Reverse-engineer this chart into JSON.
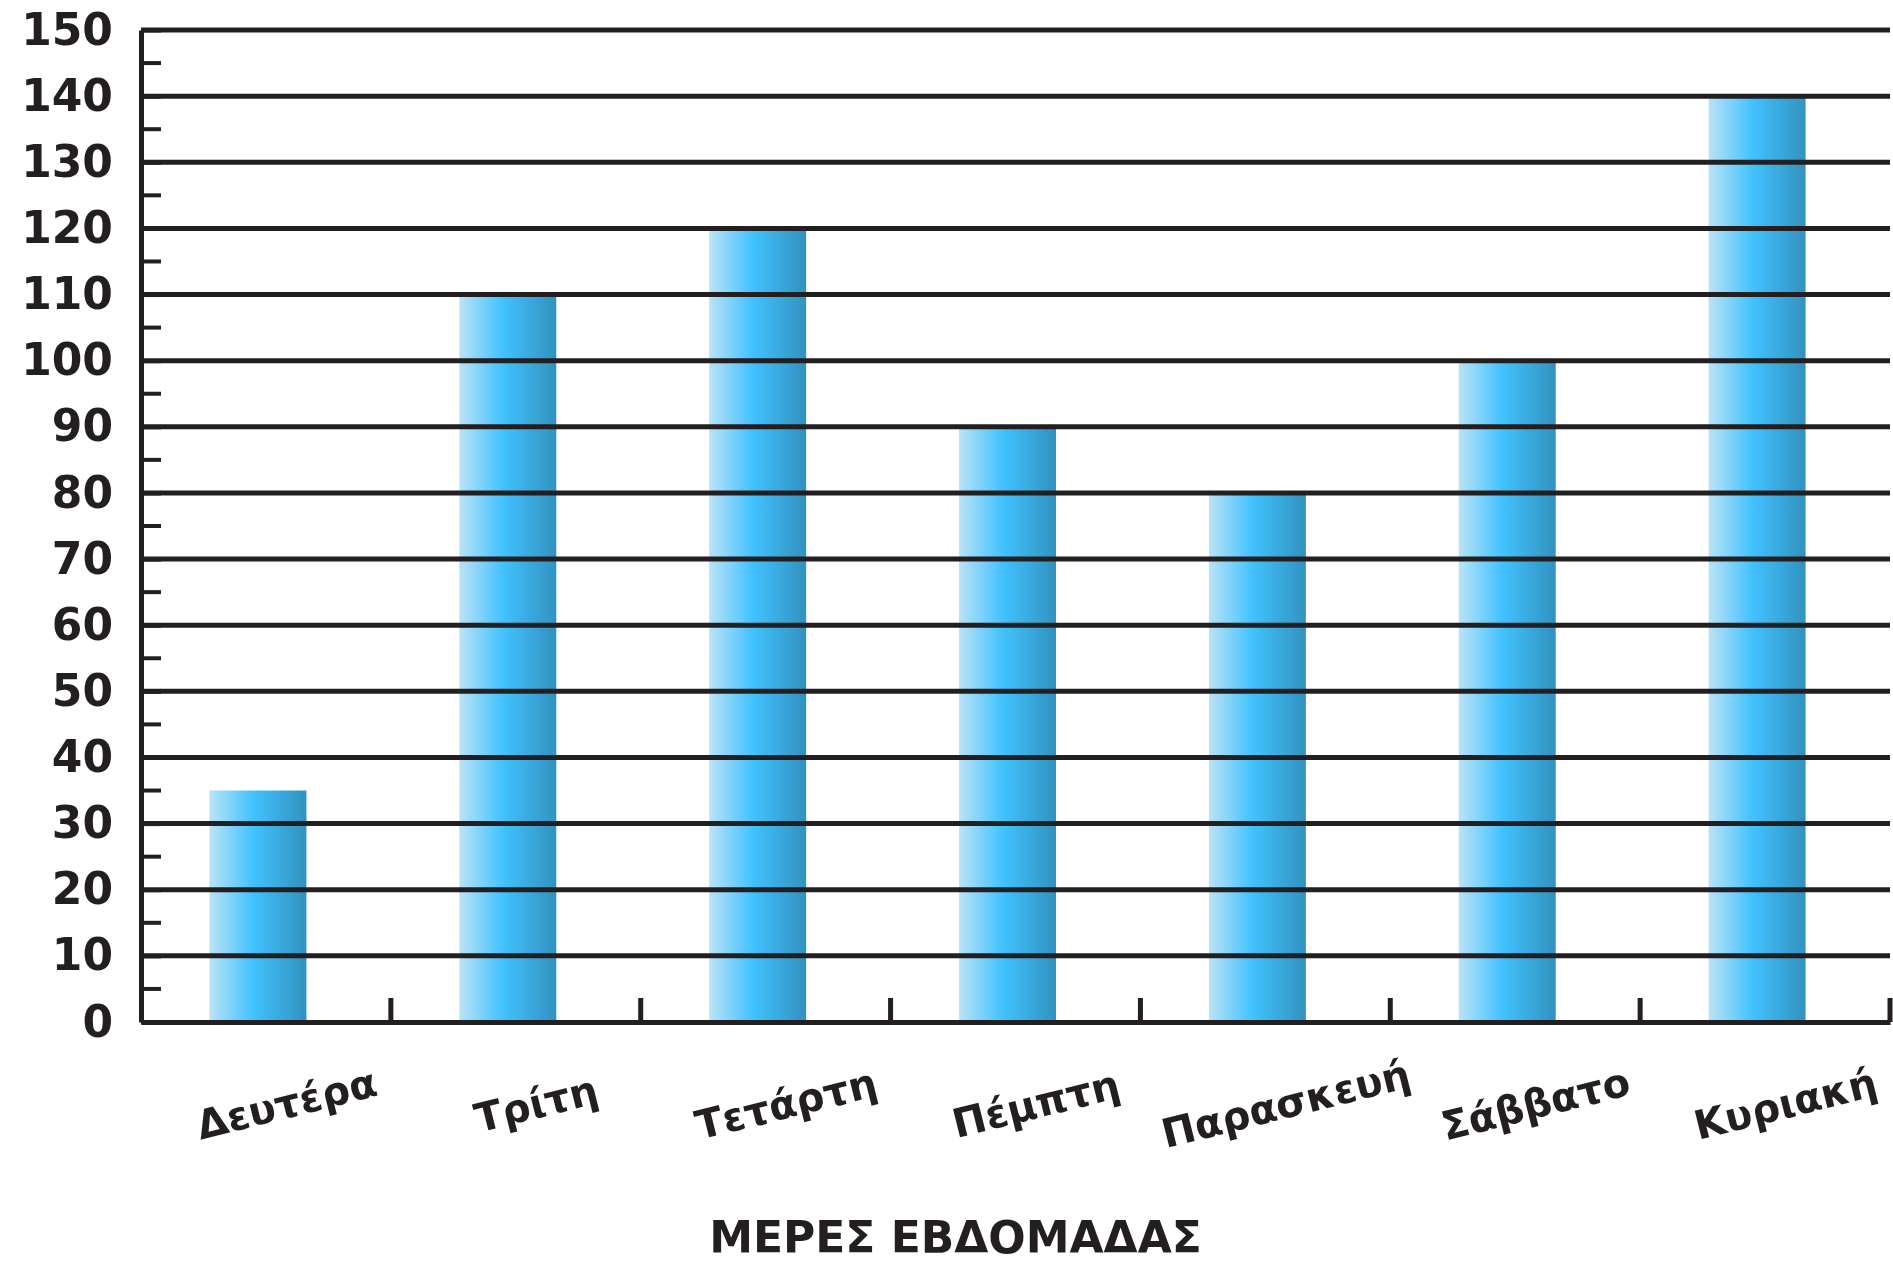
{
  "chart_data": {
    "type": "bar",
    "xlabel": "ΜΕΡΕΣ ΕΒΔΟΜΑΔΑΣ",
    "categories": [
      "Δευτέρα",
      "Τρίτη",
      "Τετάρτη",
      "Πέμπτη",
      "Παρασκευή",
      "Σάββατο",
      "Κυριακή"
    ],
    "values": [
      35,
      110,
      120,
      90,
      80,
      100,
      140
    ],
    "color": "#3aaee4",
    "ylim": [
      0,
      150
    ],
    "yticks": [
      0,
      10,
      20,
      30,
      40,
      50,
      60,
      70,
      80,
      90,
      100,
      110,
      120,
      130,
      140,
      150
    ],
    "grid": "y"
  }
}
